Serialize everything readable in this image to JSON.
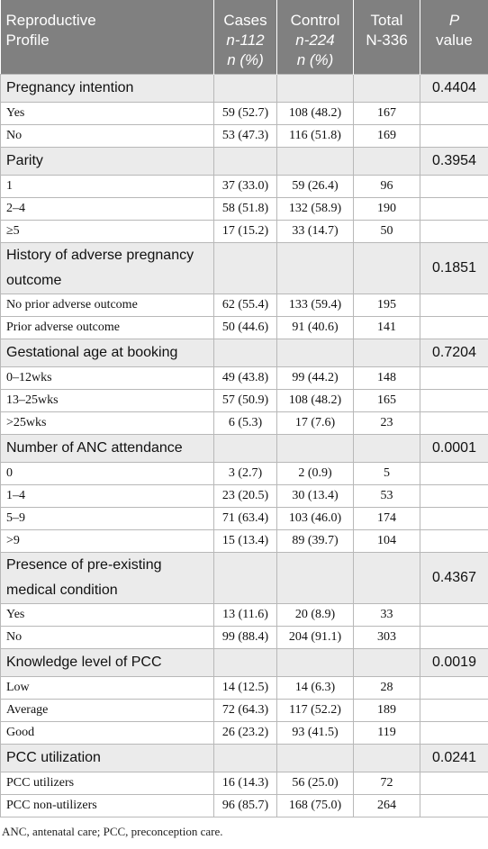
{
  "table": {
    "header": [
      {
        "lines": [
          "Reproductive",
          "Profile"
        ]
      },
      {
        "lines": [
          "Cases",
          "n-112",
          "n (%)"
        ]
      },
      {
        "lines": [
          "Control",
          "n-224",
          "n (%)"
        ]
      },
      {
        "lines": [
          "Total",
          "N-336"
        ]
      },
      {
        "lines": [
          "P",
          "value"
        ]
      }
    ],
    "sections": [
      {
        "label": "Pregnancy intention",
        "p": "0.4404",
        "rows": [
          [
            "Yes",
            "59 (52.7)",
            "108 (48.2)",
            "167"
          ],
          [
            "No",
            "53 (47.3)",
            "116 (51.8)",
            "169"
          ]
        ]
      },
      {
        "label": "Parity",
        "p": "0.3954",
        "rows": [
          [
            "1",
            "37 (33.0)",
            "59 (26.4)",
            "96"
          ],
          [
            "2–4",
            "58 (51.8)",
            "132 (58.9)",
            "190"
          ],
          [
            "≥5",
            "17 (15.2)",
            "33 (14.7)",
            "50"
          ]
        ]
      },
      {
        "label": "History of adverse pregnancy outcome",
        "p": "0.1851",
        "rows": [
          [
            "No prior adverse outcome",
            "62 (55.4)",
            "133 (59.4)",
            "195"
          ],
          [
            "Prior adverse outcome",
            "50 (44.6)",
            "91 (40.6)",
            "141"
          ]
        ]
      },
      {
        "label": "Gestational age at booking",
        "p": "0.7204",
        "rows": [
          [
            "0–12wks",
            "49 (43.8)",
            "99 (44.2)",
            "148"
          ],
          [
            "13–25wks",
            "57 (50.9)",
            "108 (48.2)",
            "165"
          ],
          [
            ">25wks",
            "6 (5.3)",
            "17 (7.6)",
            "23"
          ]
        ]
      },
      {
        "label": "Number of ANC attendance",
        "p": "0.0001",
        "rows": [
          [
            "0",
            "3 (2.7)",
            "2 (0.9)",
            "5"
          ],
          [
            "1–4",
            "23 (20.5)",
            "30 (13.4)",
            "53"
          ],
          [
            "5–9",
            "71 (63.4)",
            "103 (46.0)",
            "174"
          ],
          [
            ">9",
            "15 (13.4)",
            "89 (39.7)",
            "104"
          ]
        ]
      },
      {
        "label": "Presence of pre-existing medical condition",
        "p": "0.4367",
        "rows": [
          [
            "Yes",
            "13 (11.6)",
            "20 (8.9)",
            "33"
          ],
          [
            "No",
            "99 (88.4)",
            "204 (91.1)",
            "303"
          ]
        ]
      },
      {
        "label": "Knowledge level of PCC",
        "p": "0.0019",
        "rows": [
          [
            "Low",
            "14 (12.5)",
            "14 (6.3)",
            "28"
          ],
          [
            "Average",
            "72 (64.3)",
            "117 (52.2)",
            "189"
          ],
          [
            "Good",
            "26 (23.2)",
            "93 (41.5)",
            "119"
          ]
        ]
      },
      {
        "label": "PCC utilization",
        "p": "0.0241",
        "rows": [
          [
            "PCC utilizers",
            "16 (14.3)",
            "56 (25.0)",
            "72"
          ],
          [
            "PCC non-utilizers",
            "96 (85.7)",
            "168 (75.0)",
            "264"
          ]
        ]
      }
    ]
  },
  "footnote": "ANC, antenatal care; PCC, preconception care."
}
